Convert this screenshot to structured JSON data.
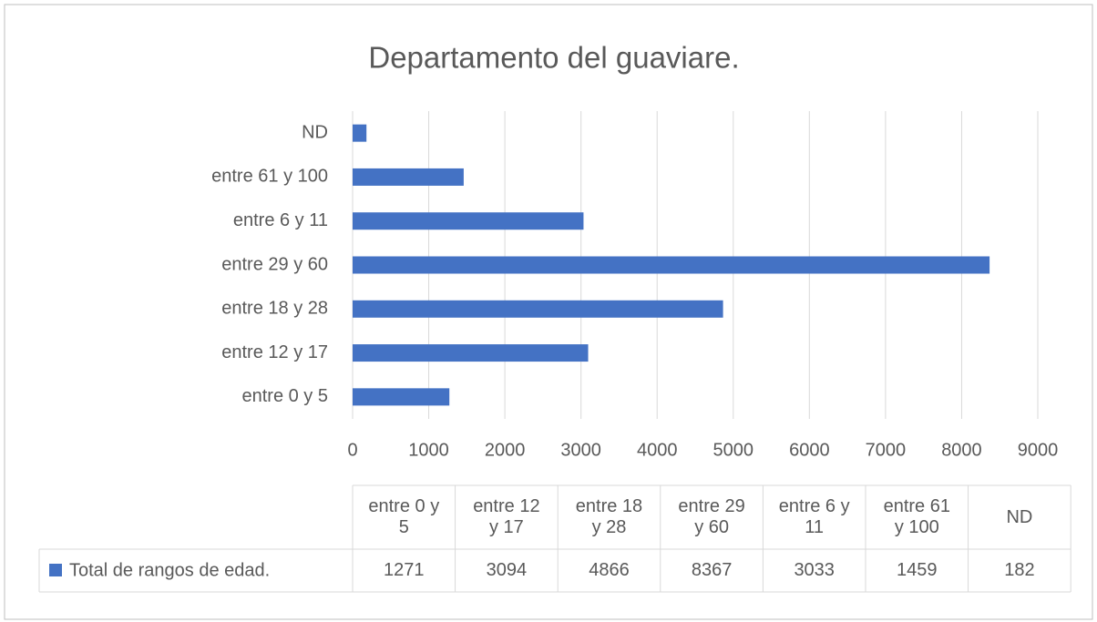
{
  "chart_data": {
    "type": "bar",
    "orientation": "horizontal",
    "title": "Departamento del guaviare.",
    "categories": [
      "entre 0 y 5",
      "entre 12 y 17",
      "entre 18 y 28",
      "entre 29 y 60",
      "entre 6 y 11",
      "entre 61 y 100",
      "ND"
    ],
    "series": [
      {
        "name": "Total de rangos de edad.",
        "color": "#4472c4",
        "values": [
          1271,
          3094,
          4866,
          8367,
          3033,
          1459,
          182
        ]
      }
    ],
    "xlim": [
      0,
      9000
    ],
    "xticks": [
      0,
      1000,
      2000,
      3000,
      4000,
      5000,
      6000,
      7000,
      8000,
      9000
    ],
    "grid": true,
    "data_table": true
  }
}
